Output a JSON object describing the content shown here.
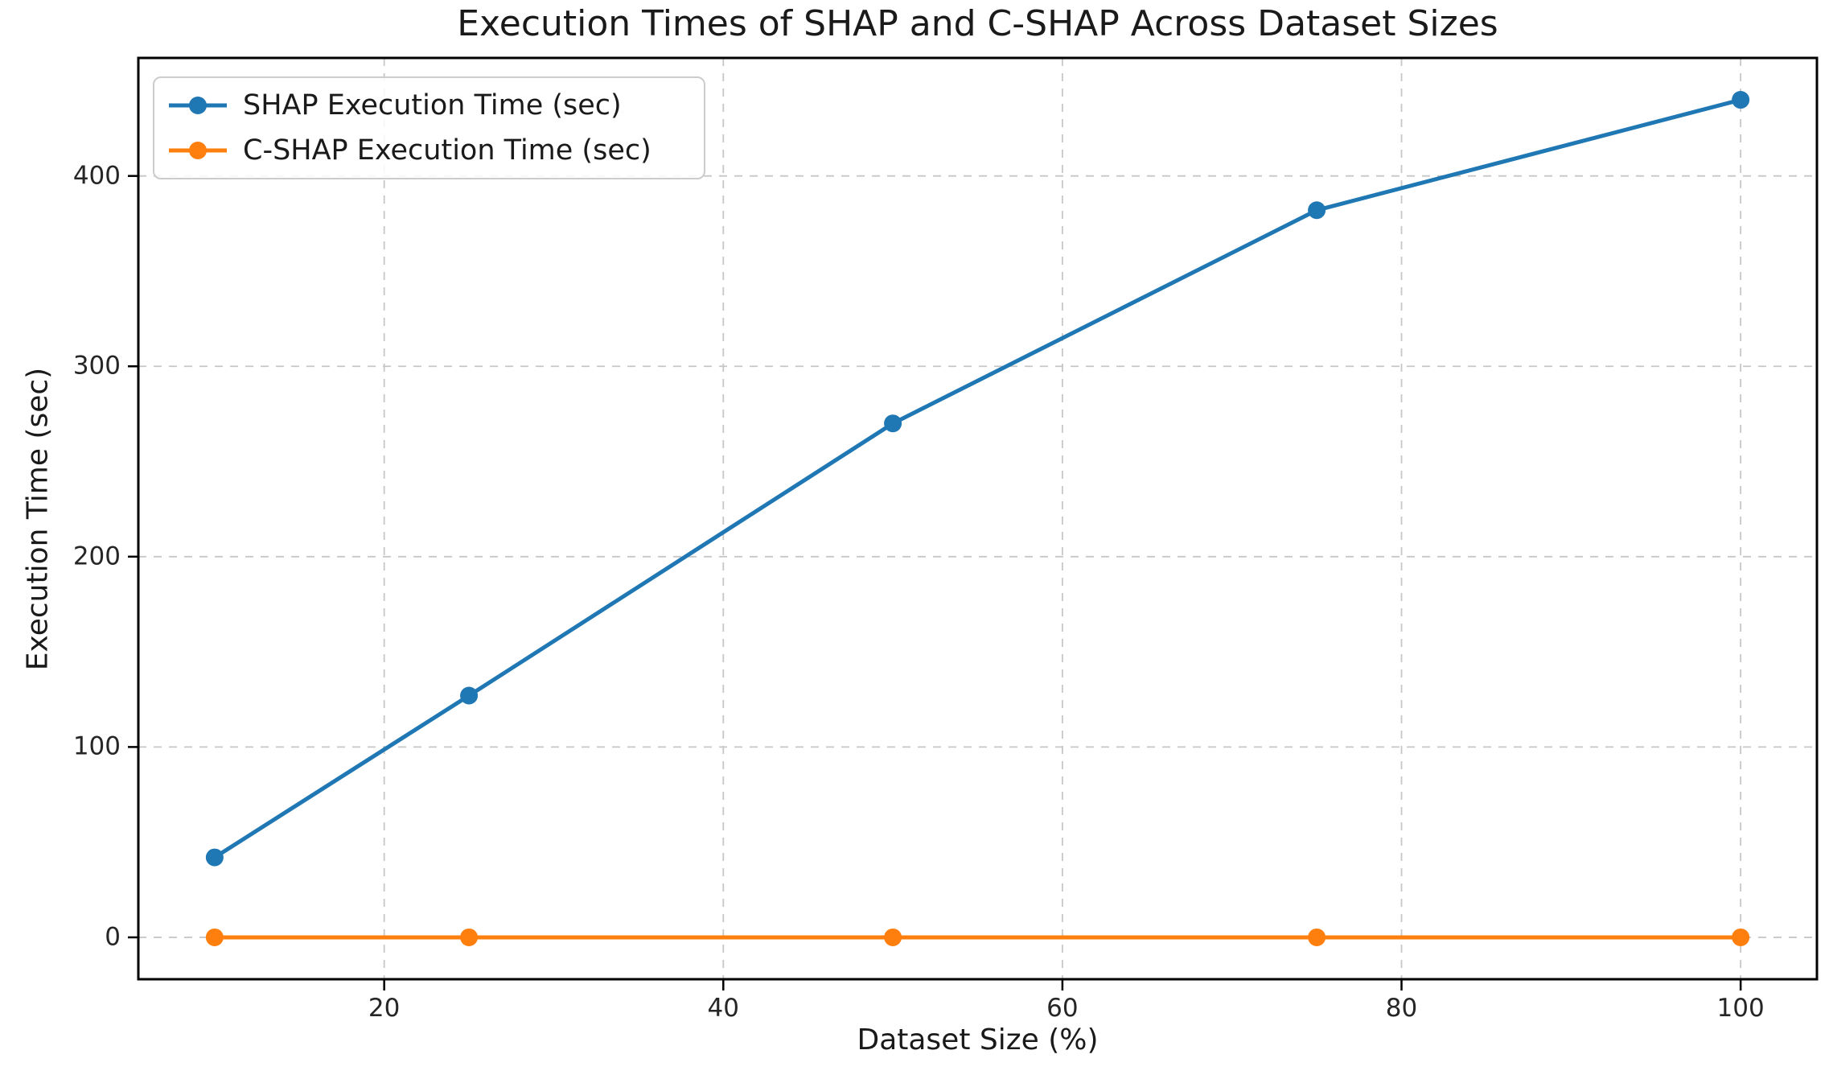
{
  "chart_data": {
    "type": "line",
    "title": "Execution Times of SHAP and C-SHAP Across Dataset Sizes",
    "xlabel": "Dataset Size (%)",
    "ylabel": "Execution Time (sec)",
    "x": [
      10,
      25,
      50,
      75,
      100
    ],
    "series": [
      {
        "name": "SHAP Execution Time (sec)",
        "color": "#1f77b4",
        "values": [
          42,
          127,
          270,
          382,
          440
        ]
      },
      {
        "name": "C-SHAP Execution Time (sec)",
        "color": "#ff7f0e",
        "values": [
          0,
          0,
          0,
          0,
          0
        ]
      }
    ],
    "xticks": [
      20,
      40,
      60,
      80,
      100
    ],
    "yticks": [
      0,
      100,
      200,
      300,
      400
    ],
    "xlim": [
      5.5,
      104.5
    ],
    "ylim": [
      -22,
      462
    ],
    "grid": true,
    "grid_style": "dashed",
    "legend_position": "upper left",
    "marker": "circle"
  },
  "colors": {
    "grid": "#c7c7c7",
    "spine": "#000000",
    "text": "#1a1a1a"
  }
}
